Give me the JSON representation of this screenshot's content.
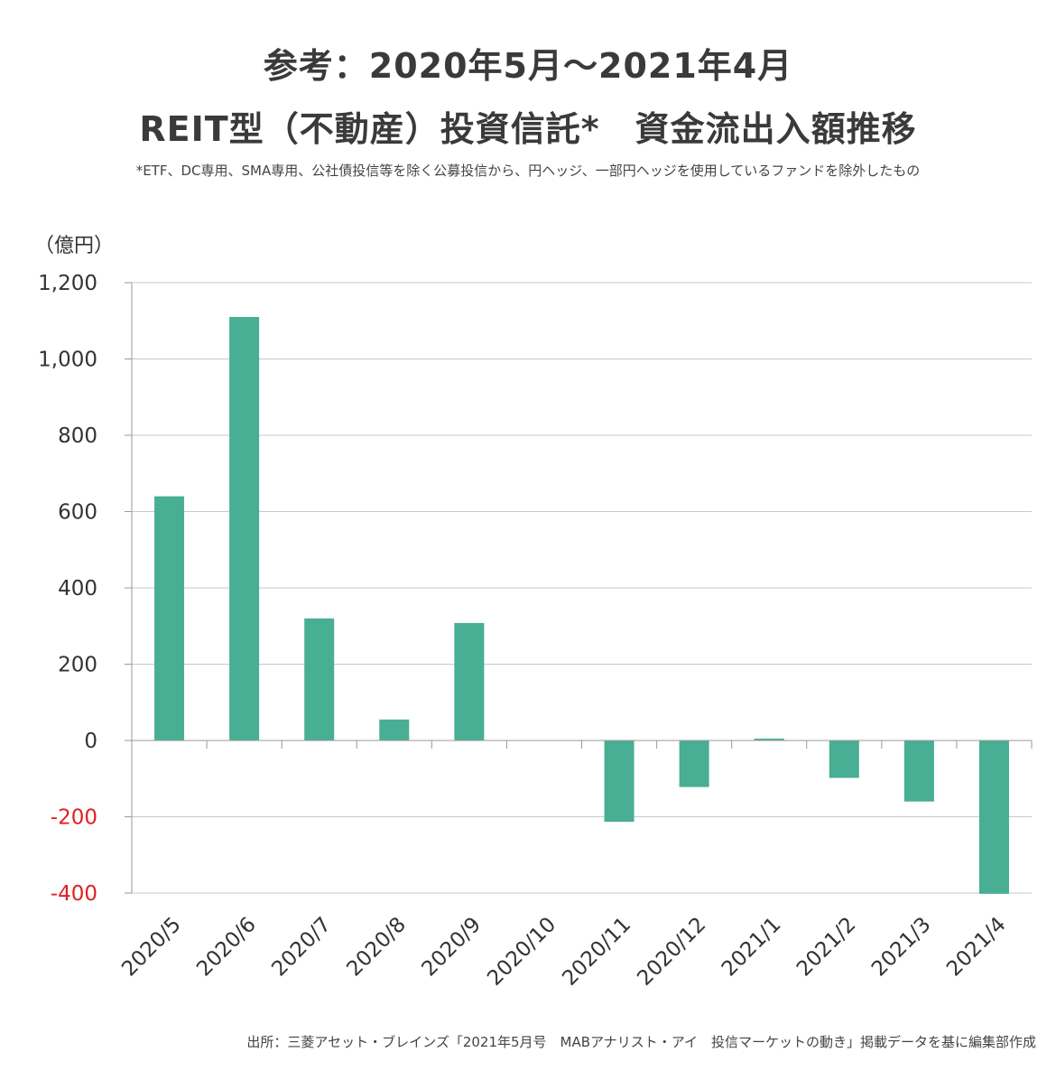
{
  "title_line1": "参考：2020年5月～2021年4月",
  "title_line2": "REIT型（不動産）投資信託*　資金流出入額推移",
  "note": "*ETF、DC専用、SMA専用、公社債投信等を除く公募投信から、円ヘッジ、一部円ヘッジを使用しているファンドを除外したもの",
  "unit_label": "（億円）",
  "source": "出所：三菱アセット・ブレインズ「2021年5月号　MABアナリスト・アイ　投信マーケットの動き」掲載データを基に編集部作成",
  "colors": {
    "bar": "#48ae94",
    "negative_tick": "#e02020",
    "grid": "#c8c8c8",
    "axis": "#999999"
  },
  "chart_data": {
    "type": "bar",
    "categories": [
      "2020/5",
      "2020/6",
      "2020/7",
      "2020/8",
      "2020/9",
      "2020/10",
      "2020/11",
      "2020/12",
      "2021/1",
      "2021/2",
      "2021/3",
      "2021/4"
    ],
    "values": [
      640,
      1110,
      320,
      55,
      308,
      0,
      -213,
      -122,
      5,
      -98,
      -160,
      -402
    ],
    "ylim": [
      -400,
      1200
    ],
    "yticks": [
      -400,
      -200,
      0,
      200,
      400,
      600,
      800,
      1000,
      1200
    ],
    "ytick_labels": [
      "-400",
      "-200",
      "0",
      "200",
      "400",
      "600",
      "800",
      "1,000",
      "1,200"
    ],
    "grid": true
  }
}
